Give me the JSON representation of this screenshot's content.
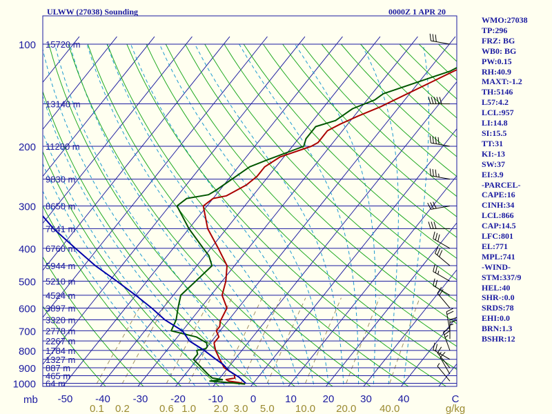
{
  "title": "ULWW (27038) Sounding",
  "datetime": "0000Z  1 APR 20",
  "indices": [
    "WMO:27038",
    "TP:296",
    "FRZ: BG",
    "WB0: BG",
    "PW:0.15",
    "RH:40.9",
    "MAXT:-1.2",
    "TH:5146",
    "L57:4.2",
    "LCL:957",
    "LI:14.8",
    "SI:15.5",
    "TT:31",
    "KI:-13",
    "SW:37",
    "EI:3.9",
    "-PARCEL-",
    "CAPE:16",
    "CINH:34",
    "LCL:866",
    "CAP:14.5",
    "LFC:801",
    "EL:771",
    "MPL:741",
    "-WIND-",
    "STM:337/9",
    "HEL:40",
    "SHR-:0.0",
    "SRDS:78",
    "EHI:0.0",
    "BRN:1.3",
    "BSHR:12"
  ],
  "colors": {
    "isobar": "#1a1aa0",
    "isotherm": "#2020a0",
    "dry_adiabat": "#22aa22",
    "moist_adiabat": "#1a9ad0",
    "mixing_ratio": "#a09060",
    "temperature": "#aa0000",
    "dewpoint": "#005500",
    "parcel": "#0000aa"
  },
  "chart_data": {
    "type": "line",
    "chart_kind": "skew-T log-P sounding",
    "pressure_axis_label": "mb",
    "ylim": [
      1000,
      100
    ],
    "xlim": [
      -50,
      50
    ],
    "pressure_levels": [
      100,
      200,
      300,
      400,
      500,
      600,
      700,
      800,
      900,
      1000
    ],
    "pressure_tick_labels": [
      "100",
      "200",
      "300",
      "400",
      "500",
      "600",
      "700",
      "800",
      "900",
      "1000"
    ],
    "height_labels": [
      {
        "p": 100,
        "label": "15720 m"
      },
      {
        "p": 150,
        "label": "13140 m"
      },
      {
        "p": 200,
        "label": "11280 m"
      },
      {
        "p": 250,
        "label": "9830 m"
      },
      {
        "p": 300,
        "label": "8650 m"
      },
      {
        "p": 350,
        "label": "7641 m"
      },
      {
        "p": 400,
        "label": "6760 m"
      },
      {
        "p": 450,
        "label": "5944 m"
      },
      {
        "p": 500,
        "label": "5210 m"
      },
      {
        "p": 550,
        "label": "4524 m"
      },
      {
        "p": 600,
        "label": "3897 m"
      },
      {
        "p": 650,
        "label": "3320 m"
      },
      {
        "p": 700,
        "label": "2778 m"
      },
      {
        "p": 750,
        "label": "2267 m"
      },
      {
        "p": 800,
        "label": "1784 m"
      },
      {
        "p": 850,
        "label": "1327 m"
      },
      {
        "p": 900,
        "label": "887 m"
      },
      {
        "p": 950,
        "label": "465 m"
      },
      {
        "p": 1000,
        "label": "64 m"
      }
    ],
    "temperature_tick_labels": [
      "-50",
      "-40",
      "-30",
      "-20",
      "-10",
      "0",
      "10",
      "20",
      "30",
      "40",
      "C"
    ],
    "temperature_tick_values": [
      -50,
      -40,
      -30,
      -20,
      -10,
      0,
      10,
      20,
      30,
      40
    ],
    "mixing_ratio_labels": [
      "0.1",
      "0.2",
      "0.6",
      "1.0",
      "2.0",
      "3.0",
      "5.0",
      "10.0",
      "20.0",
      "40.0",
      "g/kg"
    ],
    "mixing_ratio_values": [
      0.1,
      0.2,
      0.6,
      1,
      2,
      3,
      5,
      10,
      20,
      40
    ],
    "series": [
      {
        "name": "",
        "role": "temperature",
        "points": [
          [
            -2,
            1005
          ],
          [
            -4,
            995
          ],
          [
            -7,
            985
          ],
          [
            -8,
            975
          ],
          [
            -6,
            965
          ],
          [
            -7,
            940
          ],
          [
            -9,
            920
          ],
          [
            -11,
            900
          ],
          [
            -14,
            850
          ],
          [
            -17,
            800
          ],
          [
            -18,
            780
          ],
          [
            -19,
            760
          ],
          [
            -19,
            730
          ],
          [
            -21,
            700
          ],
          [
            -21,
            680
          ],
          [
            -22,
            655
          ],
          [
            -23,
            600
          ],
          [
            -27,
            550
          ],
          [
            -29,
            500
          ],
          [
            -32,
            450
          ],
          [
            -38,
            400
          ],
          [
            -45,
            350
          ],
          [
            -51,
            300
          ],
          [
            -50,
            285
          ],
          [
            -47,
            280
          ],
          [
            -44,
            260
          ],
          [
            -43,
            245
          ],
          [
            -43,
            230
          ],
          [
            -41,
            215
          ],
          [
            -35,
            200
          ],
          [
            -34,
            195
          ],
          [
            -34,
            180
          ],
          [
            -32,
            172
          ],
          [
            -29,
            163
          ],
          [
            -25,
            153
          ],
          [
            -13,
            120
          ],
          [
            -3,
            100
          ]
        ]
      },
      {
        "name": "",
        "role": "dewpoint",
        "points": [
          [
            -2,
            1005
          ],
          [
            -7,
            995
          ],
          [
            -12,
            985
          ],
          [
            -9,
            975
          ],
          [
            -12,
            965
          ],
          [
            -14,
            940
          ],
          [
            -17,
            900
          ],
          [
            -21,
            850
          ],
          [
            -21,
            820
          ],
          [
            -22,
            800
          ],
          [
            -20,
            790
          ],
          [
            -20,
            780
          ],
          [
            -21,
            760
          ],
          [
            -25,
            730
          ],
          [
            -33,
            700
          ],
          [
            -34,
            650
          ],
          [
            -36,
            600
          ],
          [
            -38,
            550
          ],
          [
            -37,
            500
          ],
          [
            -36,
            450
          ],
          [
            -39,
            420
          ],
          [
            -42,
            400
          ],
          [
            -50,
            350
          ],
          [
            -58,
            300
          ],
          [
            -57,
            285
          ],
          [
            -52,
            278
          ],
          [
            -51,
            270
          ],
          [
            -47,
            230
          ],
          [
            -44,
            220
          ],
          [
            -37,
            200
          ],
          [
            -38,
            190
          ],
          [
            -38,
            175
          ],
          [
            -34,
            168
          ],
          [
            -32,
            155
          ],
          [
            -28,
            146
          ],
          [
            -27,
            140
          ],
          [
            -14,
            120
          ],
          [
            -6,
            100
          ]
        ]
      },
      {
        "name": "",
        "role": "parcel",
        "points": [
          [
            -2,
            1000
          ],
          [
            -5,
            960
          ],
          [
            -9,
            920
          ],
          [
            -12,
            880
          ],
          [
            -15,
            850
          ],
          [
            -20,
            800
          ],
          [
            -26,
            750
          ],
          [
            -30,
            700
          ],
          [
            -37,
            650
          ],
          [
            -43,
            600
          ],
          [
            -50,
            550
          ],
          [
            -58,
            500
          ],
          [
            -67,
            450
          ],
          [
            -76,
            400
          ],
          [
            -86,
            350
          ],
          [
            -96,
            300
          ],
          [
            -106,
            250
          ],
          [
            -117,
            200
          ],
          [
            -125,
            165
          ],
          [
            -135,
            120
          ]
        ]
      }
    ],
    "wind_barbs": [
      {
        "p": 985,
        "dir": 320,
        "spd": 5
      },
      {
        "p": 940,
        "dir": 330,
        "spd": 10
      },
      {
        "p": 900,
        "dir": 320,
        "spd": 15
      },
      {
        "p": 850,
        "dir": 300,
        "spd": 20
      },
      {
        "p": 800,
        "dir": 340,
        "spd": 25
      },
      {
        "p": 740,
        "dir": 360,
        "spd": 25
      },
      {
        "p": 700,
        "dir": 350,
        "spd": 20
      },
      {
        "p": 600,
        "dir": 320,
        "spd": 20
      },
      {
        "p": 550,
        "dir": 300,
        "spd": 20
      },
      {
        "p": 500,
        "dir": 300,
        "spd": 25
      },
      {
        "p": 450,
        "dir": 310,
        "spd": 30
      },
      {
        "p": 400,
        "dir": 300,
        "spd": 30
      },
      {
        "p": 350,
        "dir": 270,
        "spd": 30
      },
      {
        "p": 300,
        "dir": 260,
        "spd": 30
      },
      {
        "p": 250,
        "dir": 280,
        "spd": 35
      },
      {
        "p": 200,
        "dir": 280,
        "spd": 40
      },
      {
        "p": 150,
        "dir": 270,
        "spd": 50
      },
      {
        "p": 100,
        "dir": 280,
        "spd": 30
      }
    ]
  }
}
